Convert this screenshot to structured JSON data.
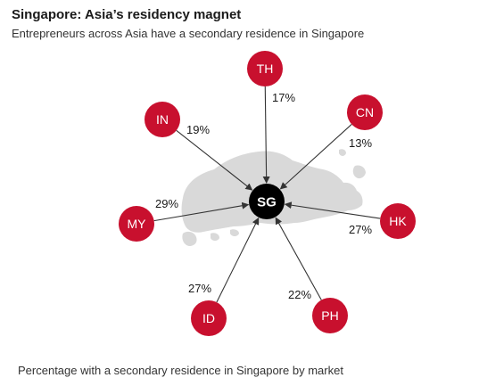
{
  "title": "Singapore: Asia’s residency magnet",
  "subtitle": "Entrepreneurs across Asia have a secondary residence in Singapore",
  "caption": "Percentage with a secondary residence in Singapore by market",
  "hub": {
    "label": "SG"
  },
  "colors": {
    "node": "#c8102e",
    "hub": "#000000",
    "arrow": "#333333",
    "map": "#d9d9d9"
  },
  "markets": [
    {
      "code": "TH",
      "value": "17%"
    },
    {
      "code": "CN",
      "value": "13%"
    },
    {
      "code": "IN",
      "value": "19%"
    },
    {
      "code": "MY",
      "value": "29%"
    },
    {
      "code": "HK",
      "value": "27%"
    },
    {
      "code": "ID",
      "value": "27%"
    },
    {
      "code": "PH",
      "value": "22%"
    }
  ]
}
